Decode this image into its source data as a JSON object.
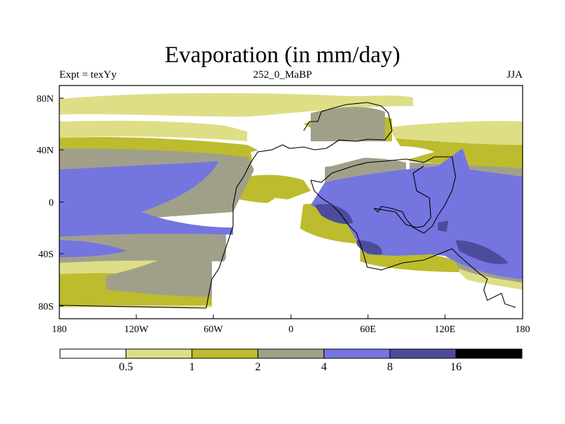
{
  "chart_data": {
    "type": "heatmap",
    "title": "Evaporation (in mm/day)",
    "subtitle_left": "Expt = texYy",
    "subtitle_center": "252_0_MaBP",
    "subtitle_right": "JJA",
    "x_ticks": [
      "180",
      "120W",
      "60W",
      "0",
      "60E",
      "120E",
      "180"
    ],
    "y_ticks": [
      "80N",
      "40N",
      "0",
      "40S",
      "80S"
    ],
    "xlim": [
      -180,
      180
    ],
    "ylim": [
      -90,
      90
    ],
    "colorbar": {
      "levels": [
        "0.5",
        "1",
        "2",
        "4",
        "8",
        "16"
      ],
      "colors": [
        "#ffffff",
        "#dede87",
        "#bcbc2e",
        "#a0a08a",
        "#7575e0",
        "#4c4c9b",
        "#000000"
      ]
    }
  }
}
